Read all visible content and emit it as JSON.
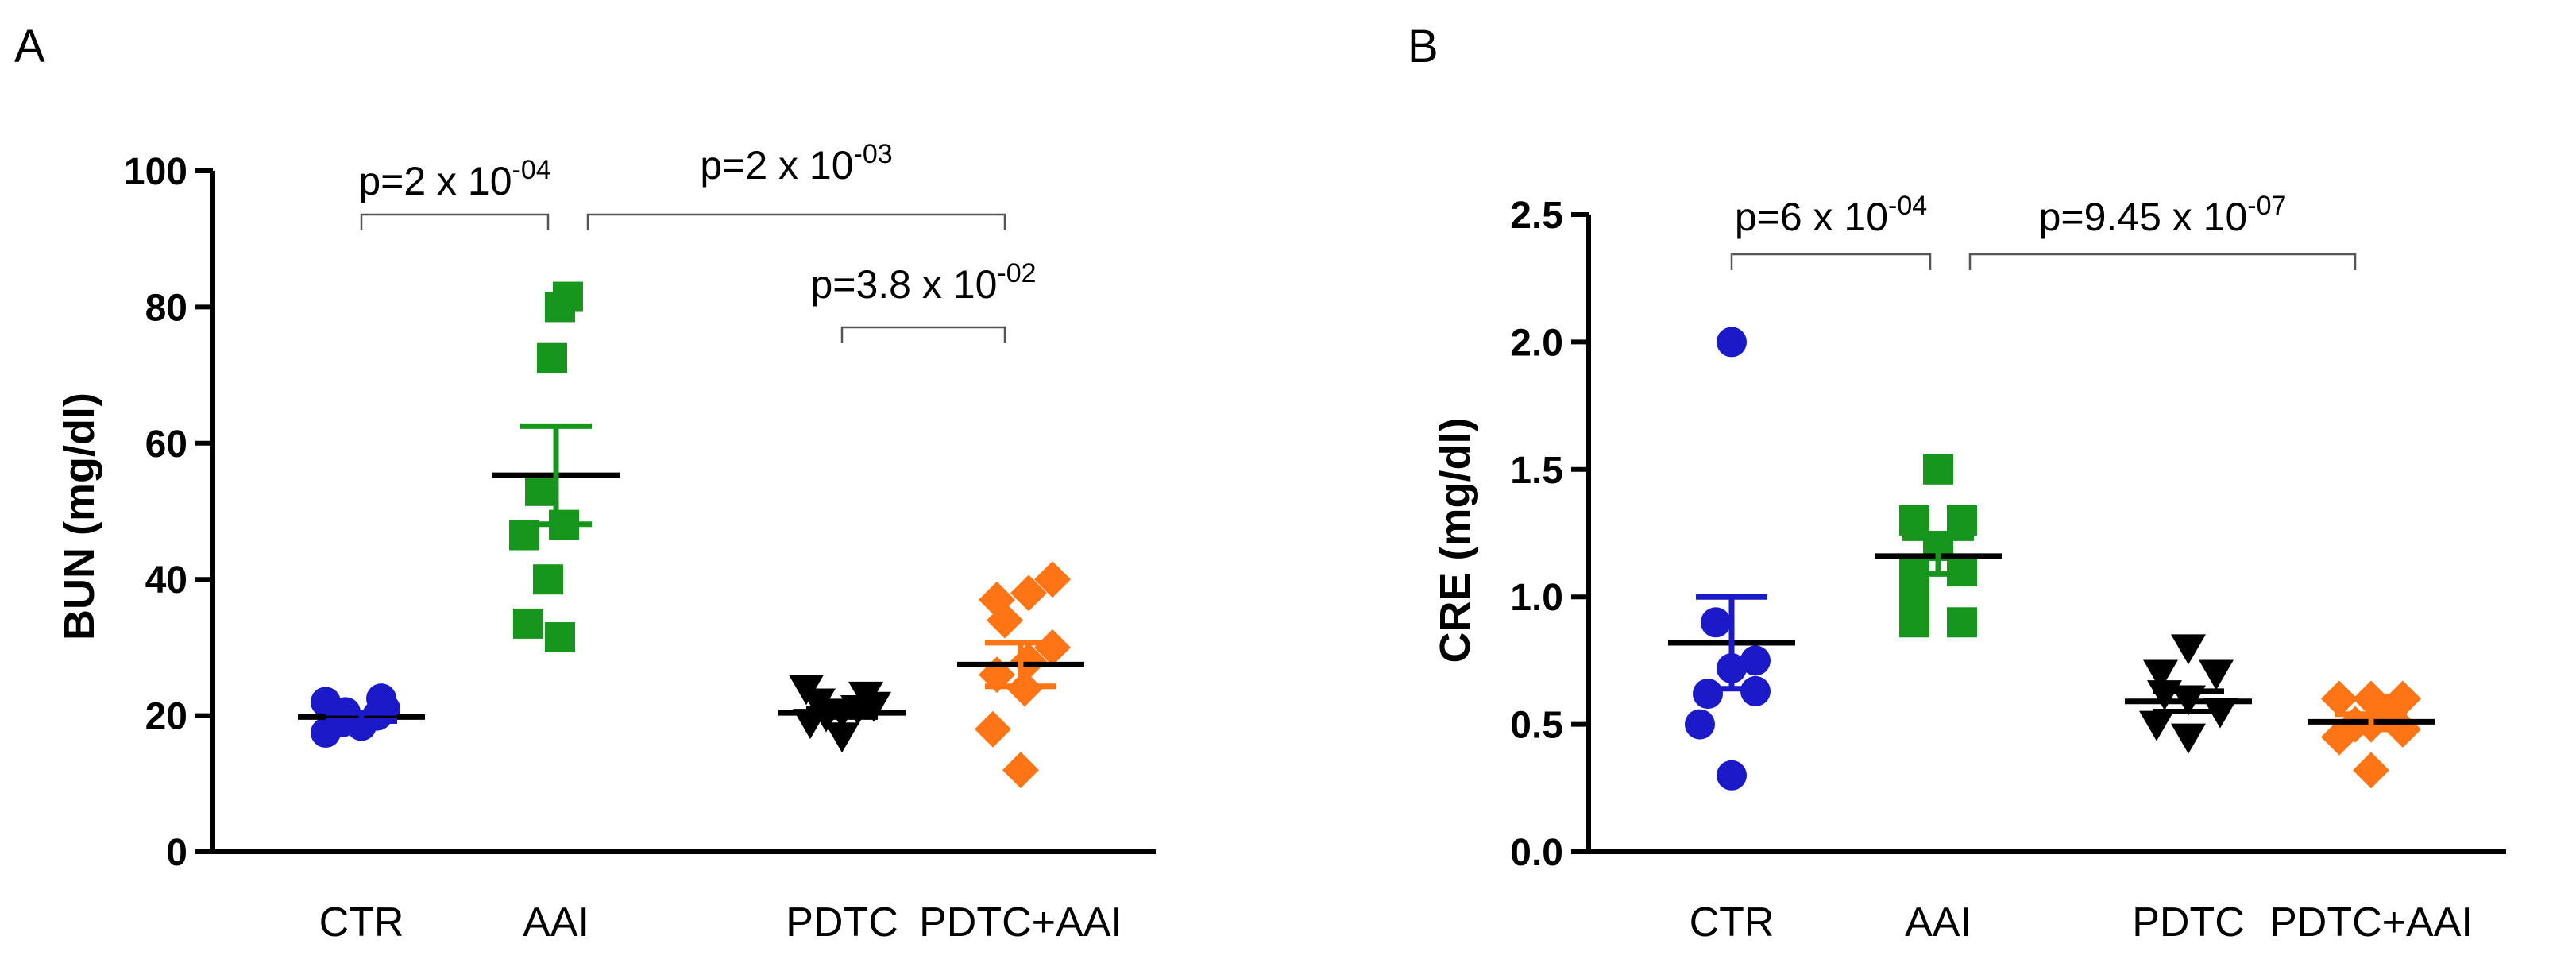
{
  "chart_data": [
    {
      "panel": "A",
      "type": "scatter",
      "ylabel": "BUN (mg/dl)",
      "ylim": [
        0,
        100
      ],
      "yticks": [
        "0",
        "20",
        "40",
        "60",
        "80",
        "100"
      ],
      "categories": [
        "CTR",
        "AAI",
        "PDTC",
        "PDTC+AAI"
      ],
      "series": [
        {
          "name": "CTR",
          "color": "#1a1ac8",
          "marker": "circle",
          "values": [
            17.5,
            18.5,
            19,
            20,
            20.5,
            21,
            22,
            22.5
          ],
          "mean": 19.8,
          "sem": 0.6
        },
        {
          "name": "AAI",
          "color": "#17961d",
          "marker": "square",
          "values": [
            31.5,
            33.5,
            40,
            46.5,
            48,
            53,
            72.5,
            80,
            81.5
          ],
          "mean": 55.3,
          "sem": 7.2
        },
        {
          "name": "PDTC",
          "color": "#000000",
          "marker": "triangle-down",
          "values": [
            17,
            19,
            20,
            20.5,
            21,
            21.5,
            22,
            23,
            24
          ],
          "mean": 20.4,
          "sem": 0.6
        },
        {
          "name": "PDTC+AAI",
          "color": "#ff7414",
          "marker": "diamond",
          "values": [
            12,
            18,
            24,
            26,
            28,
            30,
            34,
            37,
            38,
            40
          ],
          "mean": 27.5,
          "sem": 3.2
        }
      ],
      "comparisons": [
        {
          "from": "CTR",
          "to": "AAI",
          "base": "p=2 x 10",
          "exp": "-04"
        },
        {
          "from": "AAI",
          "to": "PDTC+AAI",
          "base": "p=2 x 10",
          "exp": "-03"
        },
        {
          "from": "PDTC",
          "to": "PDTC+AAI",
          "base": "p=3.8 x 10",
          "exp": "-02"
        }
      ]
    },
    {
      "panel": "B",
      "type": "scatter",
      "ylabel": "CRE (mg/dl)",
      "ylim": [
        0,
        2.5
      ],
      "yticks": [
        "0.0",
        "0.5",
        "1.0",
        "1.5",
        "2.0",
        "2.5"
      ],
      "categories": [
        "CTR",
        "AAI",
        "PDTC",
        "PDTC+AAI"
      ],
      "series": [
        {
          "name": "CTR",
          "color": "#1a1ac8",
          "marker": "circle",
          "values": [
            0.3,
            0.5,
            0.62,
            0.63,
            0.72,
            0.75,
            0.9,
            2.0
          ],
          "mean": 0.82,
          "sem": 0.18
        },
        {
          "name": "AAI",
          "color": "#17961d",
          "marker": "square",
          "values": [
            0.9,
            0.9,
            1.0,
            1.1,
            1.1,
            1.2,
            1.3,
            1.3,
            1.5
          ],
          "mean": 1.16,
          "sem": 0.07
        },
        {
          "name": "PDTC",
          "color": "#000000",
          "marker": "triangle-down",
          "values": [
            0.45,
            0.5,
            0.55,
            0.6,
            0.62,
            0.7,
            0.7,
            0.8
          ],
          "mean": 0.59,
          "sem": 0.04
        },
        {
          "name": "PDTC+AAI",
          "color": "#ff7414",
          "marker": "diamond",
          "values": [
            0.32,
            0.45,
            0.48,
            0.5,
            0.5,
            0.55,
            0.6,
            0.6,
            0.6
          ],
          "mean": 0.51,
          "sem": 0.03
        }
      ],
      "comparisons": [
        {
          "from": "CTR",
          "to": "AAI",
          "base": "p=6 x 10",
          "exp": "-04"
        },
        {
          "from": "AAI",
          "to": "PDTC+AAI",
          "base": "p=9.45 x 10",
          "exp": "-07"
        }
      ]
    }
  ]
}
